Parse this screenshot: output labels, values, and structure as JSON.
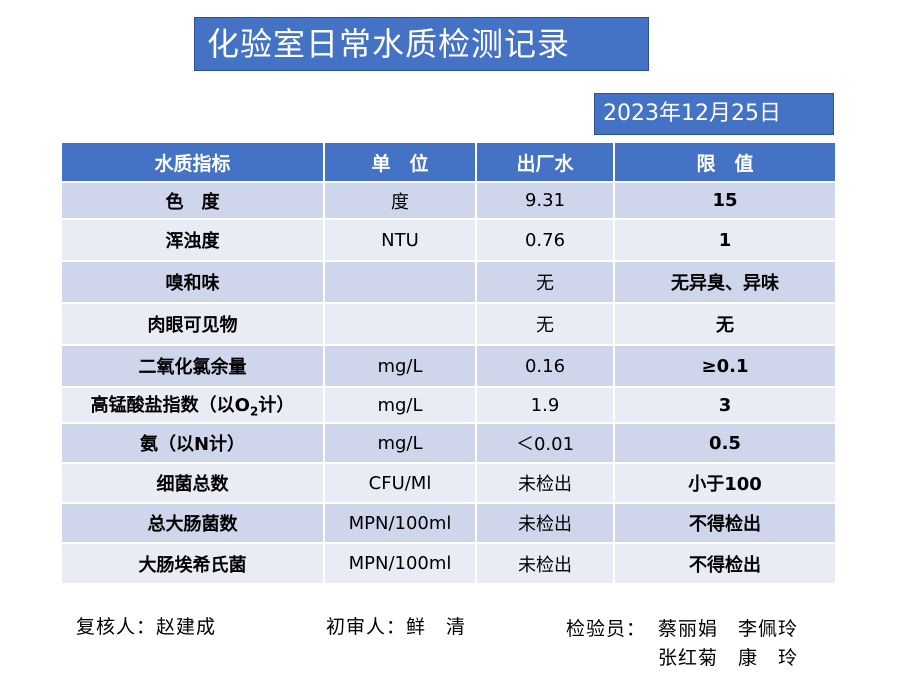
{
  "title": "化验室日常水质检测记录",
  "date": "2023年12月25日",
  "table": {
    "headers": [
      "水质指标",
      "单　位",
      "出厂水",
      "限　值"
    ],
    "rows": [
      {
        "name": "色　度",
        "unit": "度",
        "value": "9.31",
        "limit": "15"
      },
      {
        "name": "浑浊度",
        "unit": "NTU",
        "value": "0.76",
        "limit": "1"
      },
      {
        "name": "嗅和味",
        "unit": "",
        "value": "无",
        "limit": "无异臭、异味"
      },
      {
        "name": "肉眼可见物",
        "unit": "",
        "value": "无",
        "limit": "无"
      },
      {
        "name": "二氧化氯余量",
        "unit": "mg/L",
        "value": "0.16",
        "limit": "≥0.1"
      },
      {
        "name": "高锰酸盐指数（以O",
        "name_sub": "2",
        "name_suffix": "计）",
        "unit": "mg/L",
        "value": "1.9",
        "limit": "3"
      },
      {
        "name": "氨（以N计）",
        "unit": "mg/L",
        "value": "＜0.01",
        "limit": "0.5"
      },
      {
        "name": "细菌总数",
        "unit": "CFU/Ml",
        "value": "未检出",
        "limit": "小于100"
      },
      {
        "name": "总大肠菌数",
        "unit": "MPN/100ml",
        "value": "未检出",
        "limit": "不得检出"
      },
      {
        "name": "大肠埃希氏菌",
        "unit": "MPN/100ml",
        "value": "未检出",
        "limit": "不得检出"
      }
    ]
  },
  "signatures": {
    "reviewer": "复核人：赵建成",
    "preliminary": "初审人：鲜　清",
    "inspector_label": "检验员：",
    "inspectors_line1": "蔡丽娟　李佩玲",
    "inspectors_line2": "张红菊　康　玲"
  }
}
